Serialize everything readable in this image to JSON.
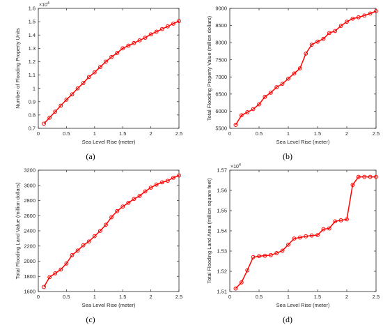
{
  "chart_data": [
    {
      "type": "line",
      "panel": "a",
      "caption": "(a)",
      "xlabel": "Sea Level Rise (meter)",
      "ylabel": "Number of Flooding Property Units",
      "y_exponent": "×10^4",
      "xlim": [
        0,
        2.5
      ],
      "ylim": [
        0.7,
        1.6
      ],
      "xticks": [
        "0",
        "0.5",
        "1",
        "1.5",
        "2",
        "2.5"
      ],
      "yticks": [
        "0.7",
        "0.8",
        "0.9",
        "1",
        "1.1",
        "1.2",
        "1.3",
        "1.4",
        "1.5",
        "1.6"
      ],
      "ytick_values": [
        0.7,
        0.8,
        0.9,
        1.0,
        1.1,
        1.2,
        1.3,
        1.4,
        1.5,
        1.6
      ],
      "x": [
        0.1,
        0.2,
        0.3,
        0.4,
        0.5,
        0.6,
        0.7,
        0.8,
        0.9,
        1.0,
        1.1,
        1.2,
        1.3,
        1.4,
        1.5,
        1.6,
        1.7,
        1.8,
        1.9,
        2.0,
        2.1,
        2.2,
        2.3,
        2.4,
        2.5
      ],
      "series": [
        {
          "values": [
            0.735,
            0.78,
            0.825,
            0.87,
            0.915,
            0.955,
            1.0,
            1.04,
            1.085,
            1.12,
            1.16,
            1.2,
            1.235,
            1.265,
            1.3,
            1.32,
            1.34,
            1.36,
            1.38,
            1.405,
            1.425,
            1.445,
            1.465,
            1.485,
            1.505
          ]
        }
      ],
      "grid": false,
      "color": "#ff0000"
    },
    {
      "type": "line",
      "panel": "b",
      "caption": "(b)",
      "xlabel": "Sea Level Rise (meter)",
      "ylabel": "Total Flooding Property Value (million dollars)",
      "xlim": [
        0,
        2.5
      ],
      "ylim": [
        5500,
        9000
      ],
      "xticks": [
        "0",
        "0.5",
        "1",
        "1.5",
        "2",
        "2.5"
      ],
      "yticks": [
        "5500",
        "6000",
        "6500",
        "7000",
        "7500",
        "8000",
        "8500",
        "9000"
      ],
      "ytick_values": [
        5500,
        6000,
        6500,
        7000,
        7500,
        8000,
        8500,
        9000
      ],
      "x": [
        0.1,
        0.2,
        0.3,
        0.4,
        0.5,
        0.6,
        0.7,
        0.8,
        0.9,
        1.0,
        1.1,
        1.2,
        1.3,
        1.4,
        1.5,
        1.6,
        1.7,
        1.8,
        1.9,
        2.0,
        2.1,
        2.2,
        2.3,
        2.4,
        2.5
      ],
      "series": [
        {
          "values": [
            5600,
            5880,
            5970,
            6060,
            6200,
            6420,
            6540,
            6700,
            6800,
            6950,
            7100,
            7250,
            7680,
            7940,
            8030,
            8110,
            8280,
            8340,
            8490,
            8610,
            8700,
            8740,
            8790,
            8850,
            8920
          ]
        }
      ],
      "grid": false,
      "color": "#ff0000"
    },
    {
      "type": "line",
      "panel": "c",
      "caption": "(c)",
      "xlabel": "Sea Level Rise (meter)",
      "ylabel": "Total Flooding Land Value (million dollars)",
      "xlim": [
        0,
        2.5
      ],
      "ylim": [
        1600,
        3200
      ],
      "xticks": [
        "0",
        "0.5",
        "1",
        "1.5",
        "2",
        "2.5"
      ],
      "yticks": [
        "1600",
        "1800",
        "2000",
        "2200",
        "2400",
        "2600",
        "2800",
        "3000",
        "3200"
      ],
      "ytick_values": [
        1600,
        1800,
        2000,
        2200,
        2400,
        2600,
        2800,
        3000,
        3200
      ],
      "x": [
        0.1,
        0.2,
        0.3,
        0.4,
        0.5,
        0.6,
        0.7,
        0.8,
        0.9,
        1.0,
        1.1,
        1.2,
        1.3,
        1.4,
        1.5,
        1.6,
        1.7,
        1.8,
        1.9,
        2.0,
        2.1,
        2.2,
        2.3,
        2.4,
        2.5
      ],
      "series": [
        {
          "values": [
            1660,
            1790,
            1840,
            1890,
            1970,
            2080,
            2140,
            2210,
            2260,
            2330,
            2400,
            2480,
            2580,
            2660,
            2720,
            2770,
            2820,
            2860,
            2920,
            2970,
            3010,
            3040,
            3060,
            3100,
            3130
          ]
        }
      ],
      "grid": false,
      "color": "#ff0000"
    },
    {
      "type": "line",
      "panel": "d",
      "caption": "(d)",
      "xlabel": "Sea Level Rise (meter)",
      "ylabel": "Total Flooding Land Area (million square feet)",
      "y_exponent": "×10^4",
      "xlim": [
        0,
        2.5
      ],
      "ylim": [
        1.51,
        1.57
      ],
      "xticks": [
        "0",
        "0.5",
        "1",
        "1.5",
        "2",
        "2.5"
      ],
      "yticks": [
        "1.51",
        "1.52",
        "1.53",
        "1.54",
        "1.55",
        "1.56",
        "1.57"
      ],
      "ytick_values": [
        1.51,
        1.52,
        1.53,
        1.54,
        1.55,
        1.56,
        1.57
      ],
      "x": [
        0.1,
        0.2,
        0.3,
        0.4,
        0.5,
        0.6,
        0.7,
        0.8,
        0.9,
        1.0,
        1.1,
        1.2,
        1.3,
        1.4,
        1.5,
        1.6,
        1.7,
        1.8,
        1.9,
        2.0,
        2.1,
        2.2,
        2.3,
        2.4,
        2.5
      ],
      "series": [
        {
          "values": [
            1.5115,
            1.5145,
            1.5205,
            1.527,
            1.5275,
            1.5277,
            1.528,
            1.529,
            1.5302,
            1.5332,
            1.5362,
            1.5367,
            1.5373,
            1.5377,
            1.5379,
            1.5408,
            1.5412,
            1.5447,
            1.5452,
            1.5457,
            1.5627,
            1.5667,
            1.5667,
            1.5667,
            1.5667
          ]
        }
      ],
      "grid": false,
      "color": "#ff0000"
    }
  ]
}
